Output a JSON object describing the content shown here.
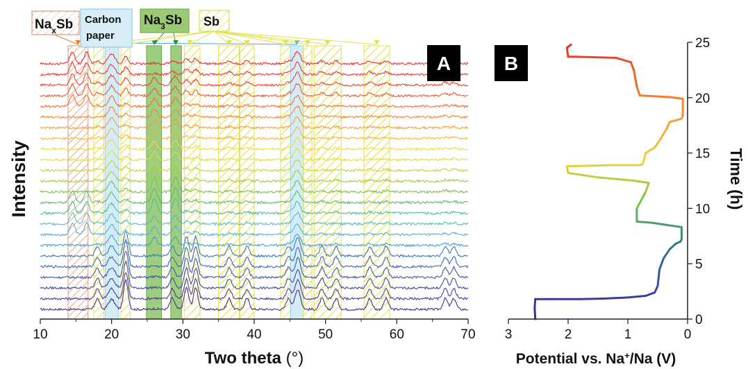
{
  "chart_data": [
    {
      "panel": "A",
      "type": "line",
      "xlabel": "Two theta (°)",
      "ylabel": "Intensity",
      "xlim": [
        10,
        70
      ],
      "xticks": [
        10,
        20,
        30,
        40,
        50,
        60,
        70
      ],
      "yticks": false,
      "pattern_count": 24,
      "pattern_colors": [
        "#4d2c86",
        "#4a3b92",
        "#45489d",
        "#4056a8",
        "#3d66b3",
        "#3d78bc",
        "#46a0cf",
        "#50b3d6",
        "#53bcc3",
        "#4fbc9a",
        "#5cba6c",
        "#77c24a",
        "#9ccc43",
        "#c3d43d",
        "#e3dc3c",
        "#f3d93e",
        "#f9b43c",
        "#f79a37",
        "#f68434",
        "#f26f33",
        "#ef5a31",
        "#ec4830",
        "#e83a2f",
        "#e4322e"
      ],
      "legend": [
        {
          "label": "Na",
          "sub": "x",
          "suffix": "Sb",
          "style": "hatched",
          "color": "#d8a07a"
        },
        {
          "label": "Carbon",
          "line2": "paper",
          "style": "filled",
          "color": "#cfe9f7"
        },
        {
          "label": "Na",
          "sub": "3",
          "suffix": "Sb",
          "style": "filled",
          "color": "#8cc063"
        },
        {
          "label": "Sb",
          "style": "hatched",
          "color": "#e4e55a"
        }
      ],
      "regions": [
        {
          "phase": "NaxSb",
          "x": [
            13.9,
            16.7
          ]
        },
        {
          "phase": "Sb",
          "x": [
            17.5,
            18.9
          ]
        },
        {
          "phase": "Carbon paper",
          "x": [
            19.1,
            21.0
          ]
        },
        {
          "phase": "Sb",
          "x": [
            21.3,
            22.6
          ]
        },
        {
          "phase": "Na3Sb",
          "x": [
            24.9,
            27.0
          ]
        },
        {
          "phase": "Na3Sb",
          "x": [
            28.3,
            29.8
          ]
        },
        {
          "phase": "Sb",
          "x": [
            30.2,
            32.4
          ]
        },
        {
          "phase": "Sb",
          "x": [
            35.0,
            37.9
          ]
        },
        {
          "phase": "Sb",
          "x": [
            38.0,
            40.0
          ]
        },
        {
          "phase": "Sb",
          "x": [
            43.7,
            45.1
          ]
        },
        {
          "phase": "Carbon paper",
          "x": [
            45.1,
            46.9
          ]
        },
        {
          "phase": "Sb",
          "x": [
            46.9,
            48.1
          ]
        },
        {
          "phase": "Sb",
          "x": [
            48.4,
            52.2
          ]
        },
        {
          "phase": "Sb",
          "x": [
            55.4,
            59.0
          ]
        }
      ],
      "peaks": {
        "sb": [
          18.0,
          22.0,
          28.5,
          30.5,
          31.8,
          36.5,
          39.0,
          44.8,
          46.2,
          49.5,
          51.5,
          56.2,
          58.5,
          66.8,
          68.0
        ],
        "carbon_paper": [
          20.0,
          46.0
        ],
        "na3sb": [
          26.0,
          29.0
        ],
        "naxsb": [
          14.5,
          16.5
        ]
      },
      "panel_label": "A"
    },
    {
      "panel": "B",
      "type": "line",
      "xlabel": "Potential vs. Na",
      "xlabel_sup": "+",
      "xlabel_tail": "/Na (V)",
      "ylabel": "Time (h)",
      "xlim": [
        3,
        0
      ],
      "ylim": [
        0,
        25
      ],
      "xticks": [
        3,
        2,
        1,
        0
      ],
      "yticks": [
        0,
        5,
        10,
        15,
        20,
        25
      ],
      "series": [
        {
          "values": [
            [
              2.55,
              0.0
            ],
            [
              2.56,
              1.0
            ],
            [
              2.55,
              1.8
            ],
            [
              2.3,
              1.8
            ],
            [
              1.8,
              1.8
            ],
            [
              1.4,
              1.85
            ],
            [
              1.0,
              1.95
            ],
            [
              0.7,
              2.1
            ],
            [
              0.55,
              2.4
            ],
            [
              0.5,
              3.0
            ],
            [
              0.47,
              4.5
            ],
            [
              0.4,
              5.5
            ],
            [
              0.3,
              6.3
            ],
            [
              0.2,
              6.8
            ],
            [
              0.12,
              7.0
            ],
            [
              0.1,
              7.2
            ],
            [
              0.1,
              8.3
            ],
            [
              0.6,
              8.7
            ],
            [
              0.85,
              8.8
            ],
            [
              0.85,
              10.0
            ],
            [
              0.7,
              11.5
            ],
            [
              0.65,
              12.3
            ],
            [
              0.9,
              12.5
            ],
            [
              1.5,
              12.8
            ],
            [
              2.0,
              13.2
            ],
            [
              2.02,
              13.8
            ],
            [
              1.3,
              13.9
            ],
            [
              0.8,
              13.9
            ],
            [
              0.75,
              14.0
            ],
            [
              0.7,
              15.0
            ],
            [
              0.55,
              15.5
            ],
            [
              0.45,
              16.3
            ],
            [
              0.35,
              17.2
            ],
            [
              0.3,
              17.8
            ],
            [
              0.1,
              18.1
            ],
            [
              0.08,
              18.4
            ],
            [
              0.08,
              19.9
            ],
            [
              0.3,
              20.05
            ],
            [
              0.8,
              20.2
            ],
            [
              0.85,
              21.0
            ],
            [
              0.9,
              22.5
            ],
            [
              0.95,
              23.2
            ],
            [
              1.2,
              23.6
            ],
            [
              1.9,
              23.7
            ],
            [
              2.0,
              23.7
            ],
            [
              2.02,
              24.5
            ],
            [
              1.95,
              24.8
            ]
          ]
        }
      ],
      "color_scale": [
        "#3b2788",
        "#3b4ea8",
        "#2f7f8a",
        "#7cc443",
        "#e8d63a",
        "#f5a03a",
        "#ef6b2f",
        "#e62d2b"
      ],
      "panel_label": "B"
    }
  ]
}
